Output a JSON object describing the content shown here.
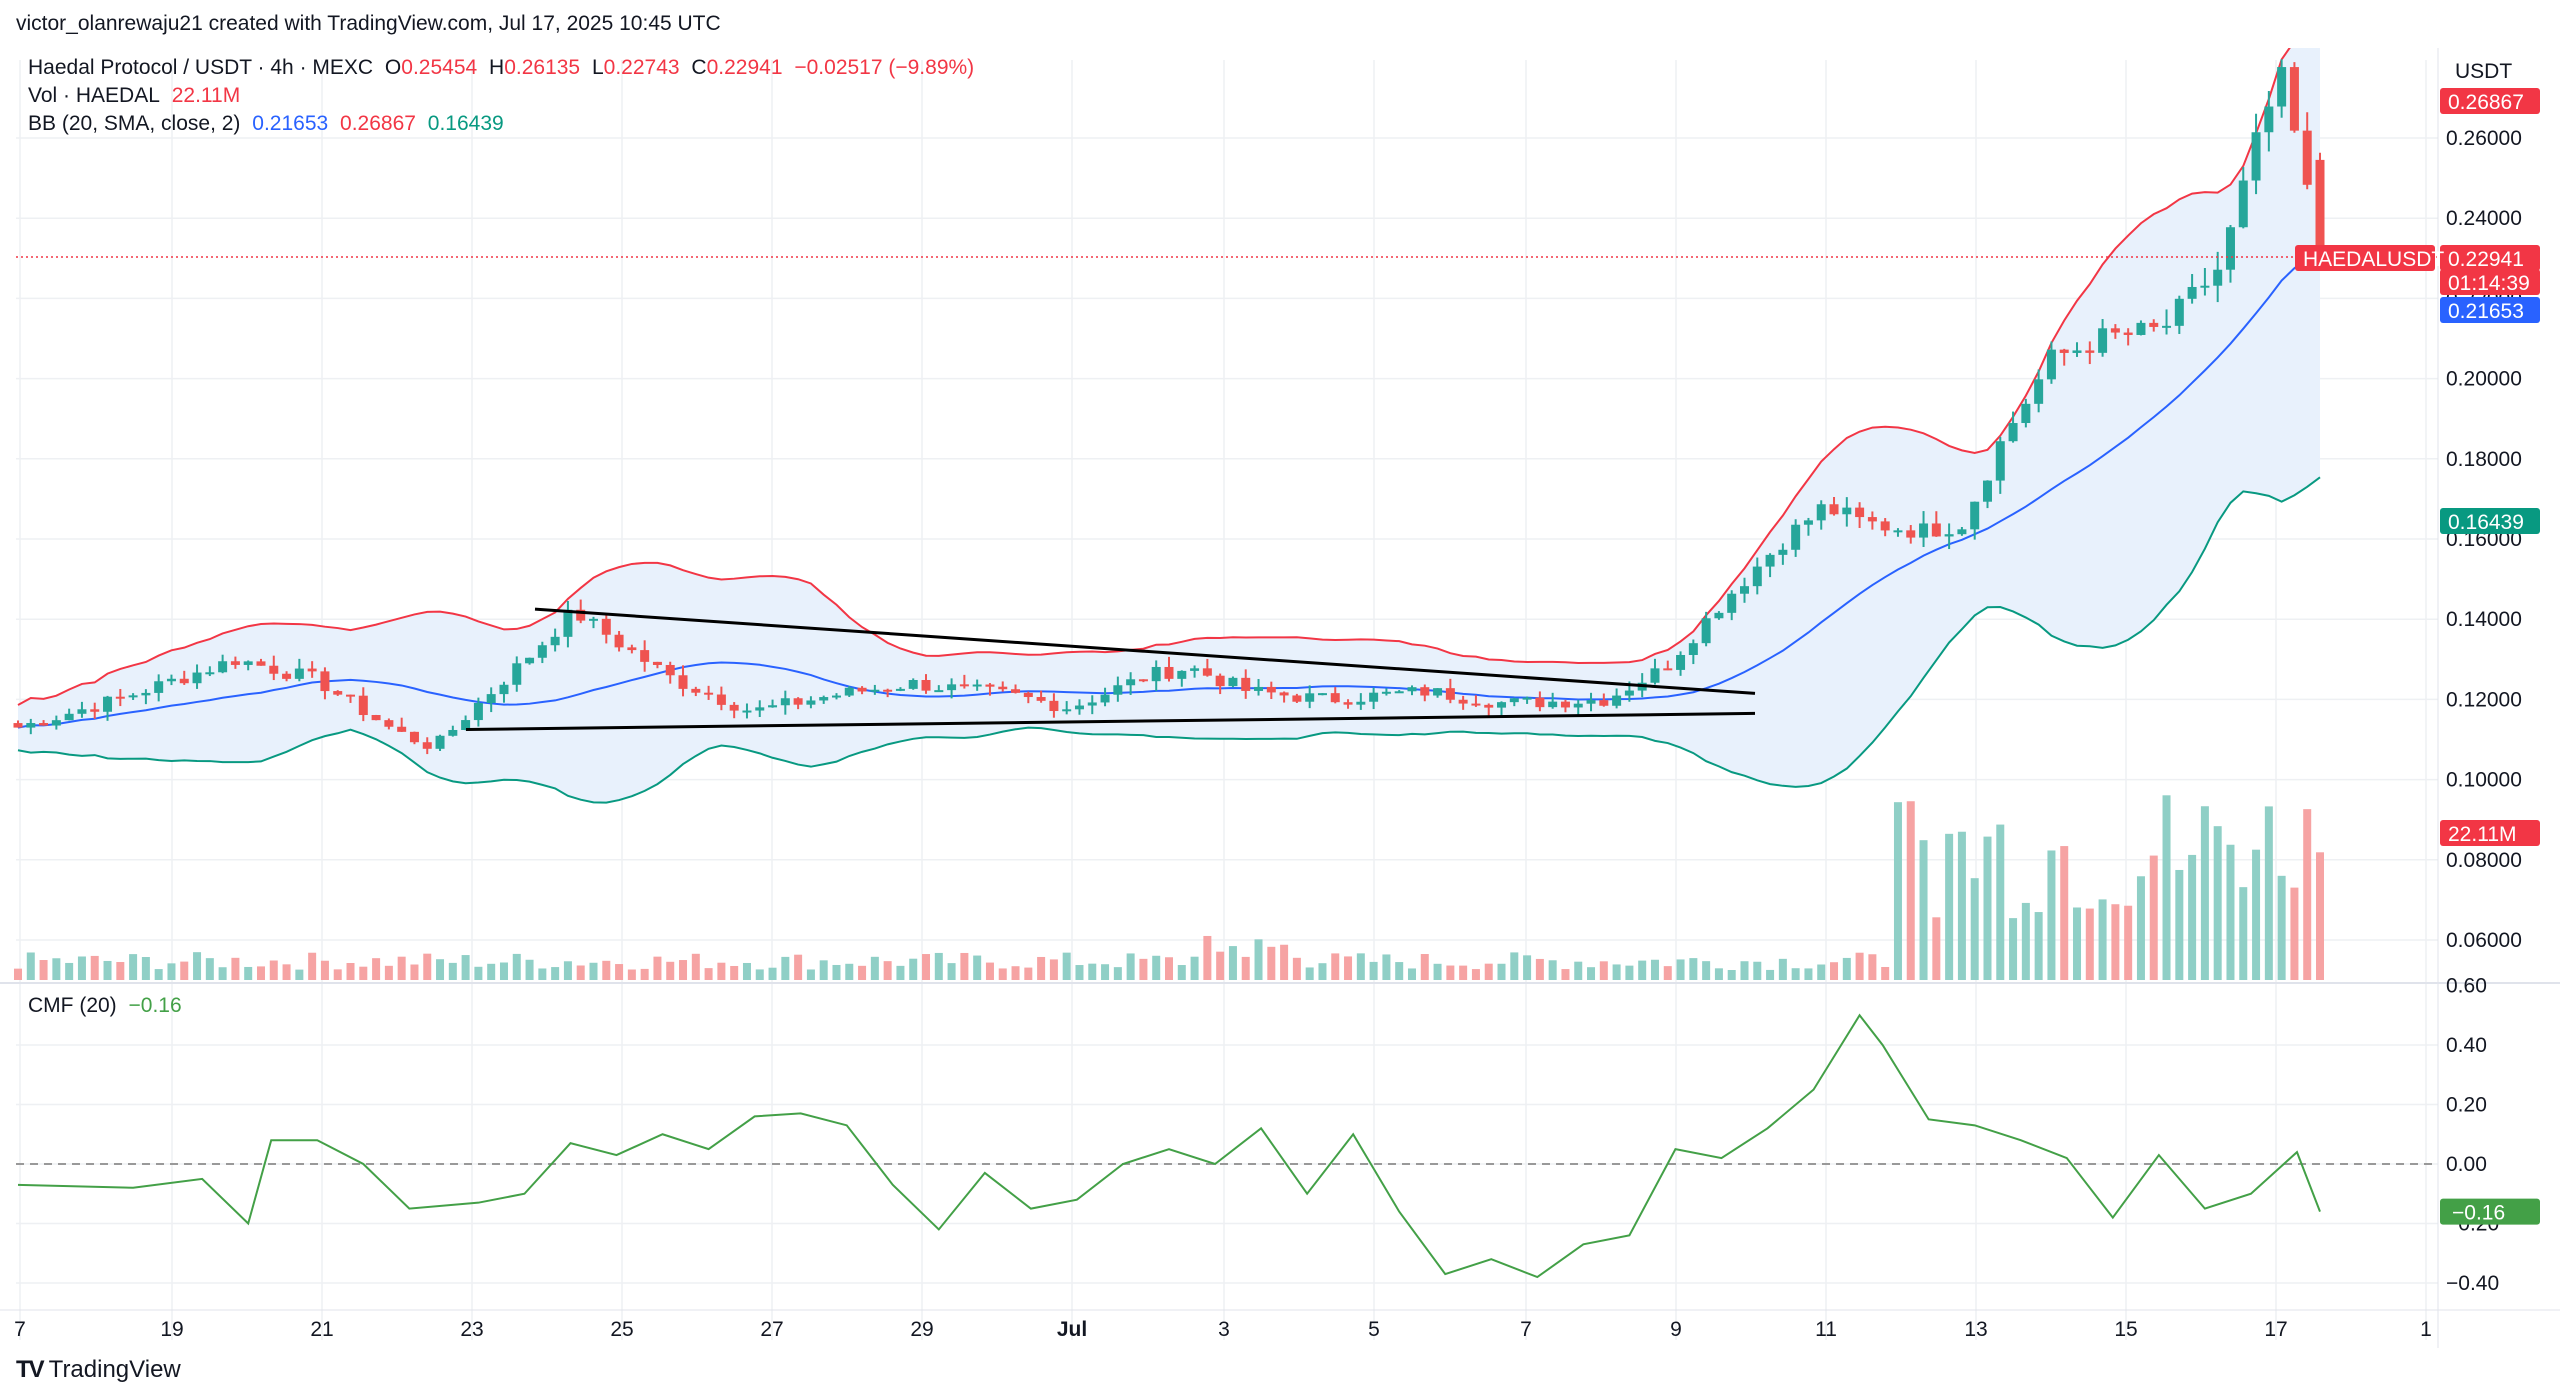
{
  "attribution": "victor_olanrewaju21 created with TradingView.com, Jul 17, 2025 10:45 UTC",
  "legend": {
    "symbol": "Haedal Protocol / USDT · 4h · MEXC",
    "o_label": "O",
    "o_value": "0.25454",
    "h_label": "H",
    "h_value": "0.26135",
    "l_label": "L",
    "l_value": "0.22743",
    "c_label": "C",
    "c_value": "0.22941",
    "change": "−0.02517 (−9.89%)",
    "vol_label": "Vol · HAEDAL",
    "vol_value": "22.11M",
    "bb_label": "BB (20, SMA, close, 2)",
    "bb_basis": "0.21653",
    "bb_upper": "0.26867",
    "bb_lower": "0.16439",
    "cmf_label": "CMF (20)",
    "cmf_value": "−0.16"
  },
  "price_axis": {
    "currency": "USDT",
    "ticks": [
      "0.26000",
      "0.24000",
      "0.22000",
      "0.20000",
      "0.18000",
      "0.16000",
      "0.14000",
      "0.12000",
      "0.10000",
      "0.08000",
      "0.06000"
    ],
    "tags": {
      "bb_upper": "0.26867",
      "symbol": "HAEDALUSDT",
      "last_price": "0.22941",
      "countdown": "01:14:39",
      "bb_basis": "0.21653",
      "bb_lower": "0.16439",
      "volume": "22.11M"
    }
  },
  "cmf_axis": {
    "ticks": [
      "0.60",
      "0.40",
      "0.20",
      "0.00",
      "−0.20",
      "−0.40"
    ],
    "tag": "−0.16"
  },
  "time_axis": {
    "labels": [
      "7",
      "19",
      "21",
      "23",
      "25",
      "27",
      "29",
      "Jul",
      "3",
      "5",
      "7",
      "9",
      "11",
      "13",
      "15",
      "17",
      "1"
    ]
  },
  "footer": {
    "brand": "TradingView",
    "logo": "TV"
  },
  "colors": {
    "up": "#26a69a",
    "down": "#ef5350",
    "up_vol": "#8fcfc6",
    "down_vol": "#f6a3a3",
    "bb_upper": "#f23645",
    "bb_basis": "#2962ff",
    "bb_lower": "#089981",
    "bb_fill": "#e8f1fc",
    "cmf": "#43a047",
    "grid": "#eef0f3"
  },
  "chart_data": {
    "type": "candlestick",
    "interval": "4h",
    "symbol": "HAEDALUSDT",
    "date_range": [
      "Jun 17, 2025",
      "Jul 17, 2025"
    ],
    "last_candle": {
      "open": 0.25454,
      "high": 0.26135,
      "low": 0.22743,
      "close": 0.22941
    },
    "y_range": [
      0.04,
      0.28
    ],
    "cmf_range": [
      -0.45,
      0.6
    ],
    "key_points": [
      {
        "date": "Jun 17",
        "close": 0.113
      },
      {
        "date": "Jun 20",
        "close": 0.13
      },
      {
        "date": "Jun 22",
        "close": 0.108
      },
      {
        "date": "Jun 23",
        "close": 0.118
      },
      {
        "date": "Jun 24",
        "close": 0.142
      },
      {
        "date": "Jun 27",
        "close": 0.117
      },
      {
        "date": "Jul 1",
        "close": 0.122
      },
      {
        "date": "Jul 4",
        "close": 0.128
      },
      {
        "date": "Jul 7",
        "close": 0.121
      },
      {
        "date": "Jul 9",
        "close": 0.12
      },
      {
        "date": "Jul 10",
        "close": 0.145
      },
      {
        "date": "Jul 11",
        "close": 0.168
      },
      {
        "date": "Jul 13",
        "close": 0.163
      },
      {
        "date": "Jul 14",
        "close": 0.185
      },
      {
        "date": "Jul 15",
        "close": 0.205
      },
      {
        "date": "Jul 16",
        "close": 0.212
      },
      {
        "date": "Jul 17",
        "close": 0.275
      },
      {
        "date": "Jul 17",
        "close": 0.22941
      }
    ],
    "bollinger": {
      "period": 20,
      "basis": 0.21653,
      "upper": 0.26867,
      "lower": 0.16439
    },
    "volume_last": "22.11M",
    "cmf_last": -0.16,
    "trendlines": [
      {
        "from": {
          "date": "Jun 24",
          "price": 0.1425
        },
        "to": {
          "date": "Jul 10",
          "price": 0.1215
        }
      },
      {
        "from": {
          "date": "Jun 23",
          "price": 0.1125
        },
        "to": {
          "date": "Jul 10",
          "price": 0.1165
        }
      }
    ]
  }
}
